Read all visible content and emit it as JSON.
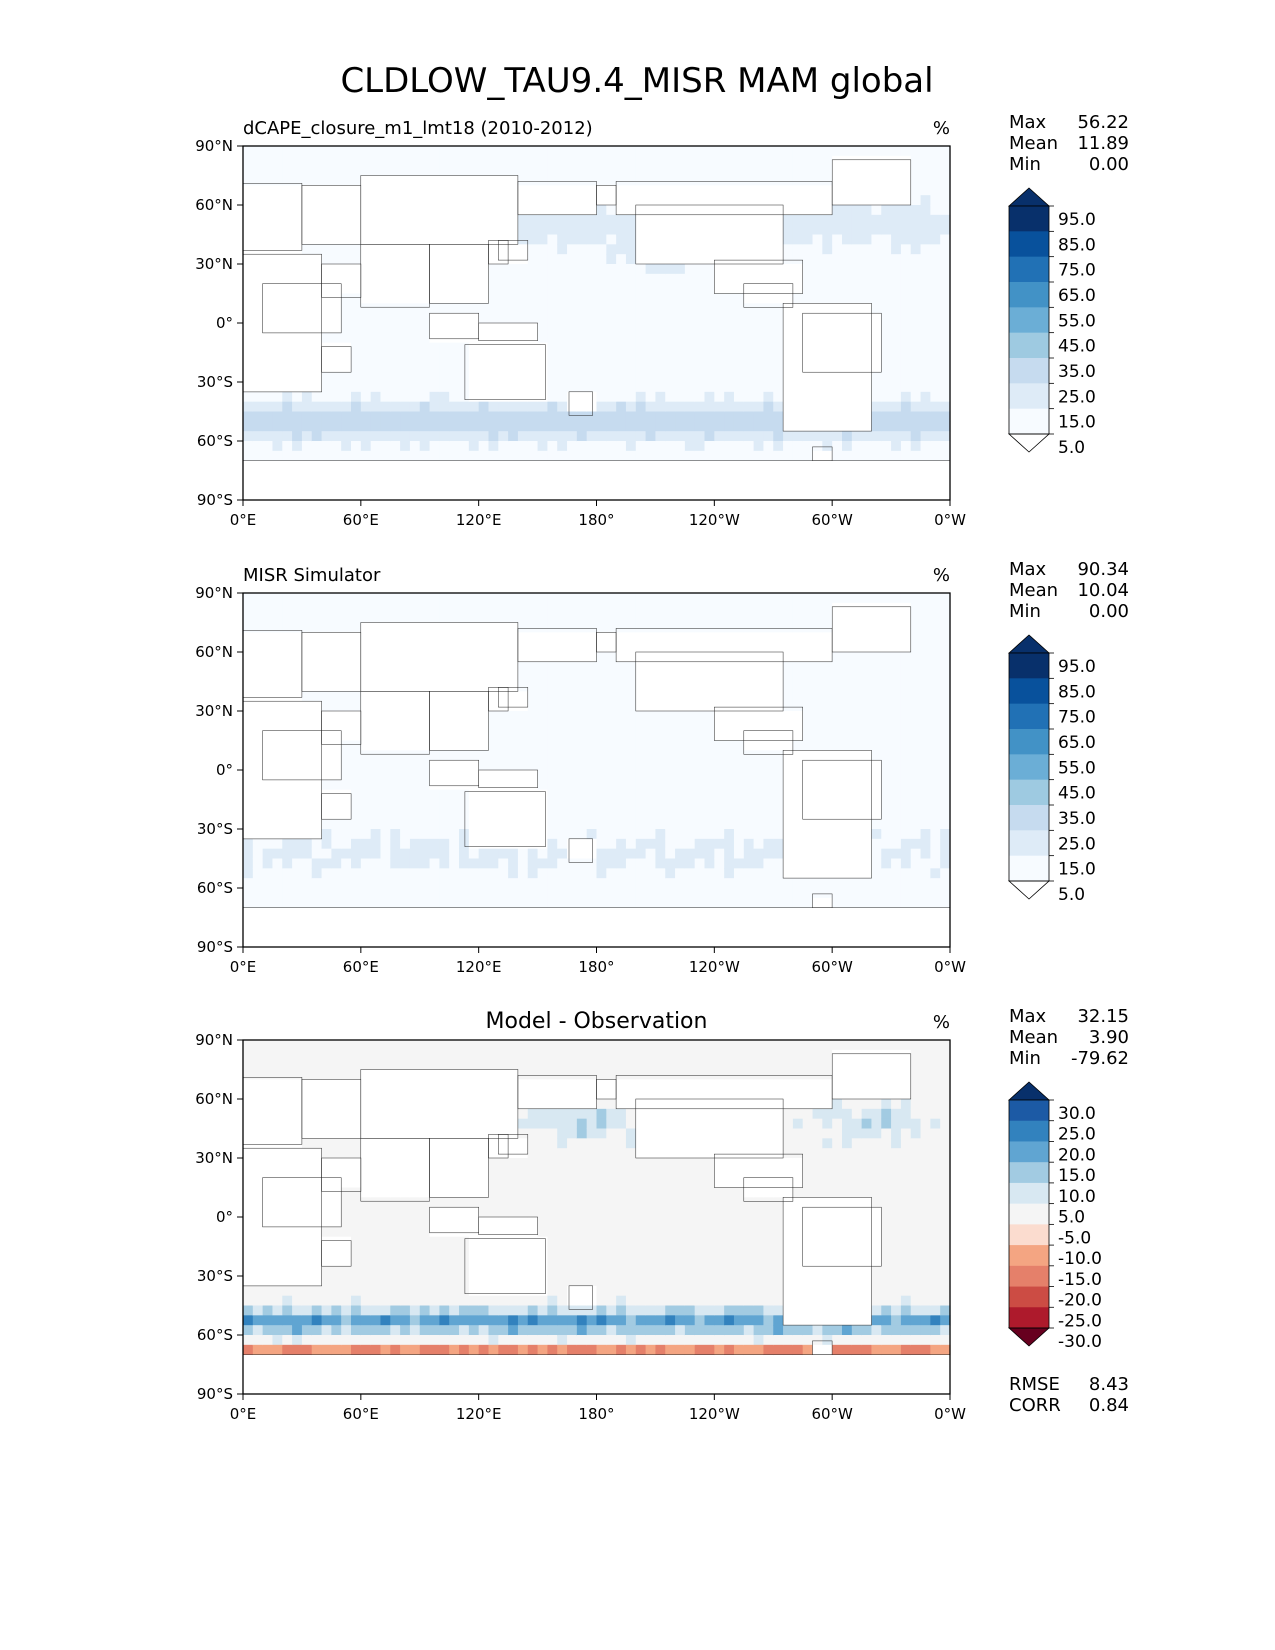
{
  "chart_data": {
    "type": "heatmap",
    "title": "CLDLOW_TAU9.4_MISR MAM global",
    "x_ticks": [
      "0°E",
      "60°E",
      "120°E",
      "180°",
      "120°W",
      "60°W",
      "0°W"
    ],
    "y_ticks": [
      "90°N",
      "60°N",
      "30°N",
      "0°",
      "30°S",
      "60°S",
      "90°S"
    ],
    "lon_range": [
      0,
      360
    ],
    "lat_range": [
      -90,
      90
    ],
    "panels": [
      {
        "name": "model",
        "left_title": "dCAPE_closure_m1_lmt18 (2010-2012)",
        "center_title": "",
        "units": "%",
        "stats": [
          {
            "label": "Max",
            "value": "56.22"
          },
          {
            "label": "Mean",
            "value": "11.89"
          },
          {
            "label": "Min",
            "value": "0.00"
          }
        ],
        "colorbar_labels": [
          "95.0",
          "85.0",
          "75.0",
          "65.0",
          "55.0",
          "45.0",
          "35.0",
          "25.0",
          "15.0",
          "5.0"
        ],
        "colorbar_colors": [
          "#08306b",
          "#08519c",
          "#2171b5",
          "#4292c6",
          "#6baed6",
          "#9ecae1",
          "#c6dbef",
          "#deebf7",
          "#f7fbff"
        ],
        "colorbar_ends": [
          "#08306b",
          "#ffffff"
        ],
        "field": "model",
        "footer_stats": []
      },
      {
        "name": "obs",
        "left_title": "MISR Simulator",
        "center_title": "",
        "units": "%",
        "stats": [
          {
            "label": "Max",
            "value": "90.34"
          },
          {
            "label": "Mean",
            "value": "10.04"
          },
          {
            "label": "Min",
            "value": "0.00"
          }
        ],
        "colorbar_labels": [
          "95.0",
          "85.0",
          "75.0",
          "65.0",
          "55.0",
          "45.0",
          "35.0",
          "25.0",
          "15.0",
          "5.0"
        ],
        "colorbar_colors": [
          "#08306b",
          "#08519c",
          "#2171b5",
          "#4292c6",
          "#6baed6",
          "#9ecae1",
          "#c6dbef",
          "#deebf7",
          "#f7fbff"
        ],
        "colorbar_ends": [
          "#08306b",
          "#ffffff"
        ],
        "field": "obs",
        "footer_stats": []
      },
      {
        "name": "diff",
        "left_title": "",
        "center_title": "Model - Observation",
        "units": "%",
        "stats": [
          {
            "label": "Max",
            "value": "32.15"
          },
          {
            "label": "Mean",
            "value": "3.90"
          },
          {
            "label": "Min",
            "value": "-79.62"
          }
        ],
        "colorbar_labels": [
          "30.0",
          "25.0",
          "20.0",
          "15.0",
          "10.0",
          "5.0",
          "-5.0",
          "-10.0",
          "-15.0",
          "-20.0",
          "-25.0",
          "-30.0"
        ],
        "colorbar_colors": [
          "#1c5aa5",
          "#3282be",
          "#60a5d2",
          "#a2cbe2",
          "#d8e8f2",
          "#f5f5f5",
          "#fbdccf",
          "#f4a582",
          "#e5806a",
          "#cc4c44",
          "#ae1a2c"
        ],
        "colorbar_ends": [
          "#08306b",
          "#67001f"
        ],
        "field": "diff",
        "footer_stats": [
          {
            "label": "RMSE",
            "value": "8.43"
          },
          {
            "label": "CORR",
            "value": "0.84"
          }
        ]
      }
    ]
  }
}
